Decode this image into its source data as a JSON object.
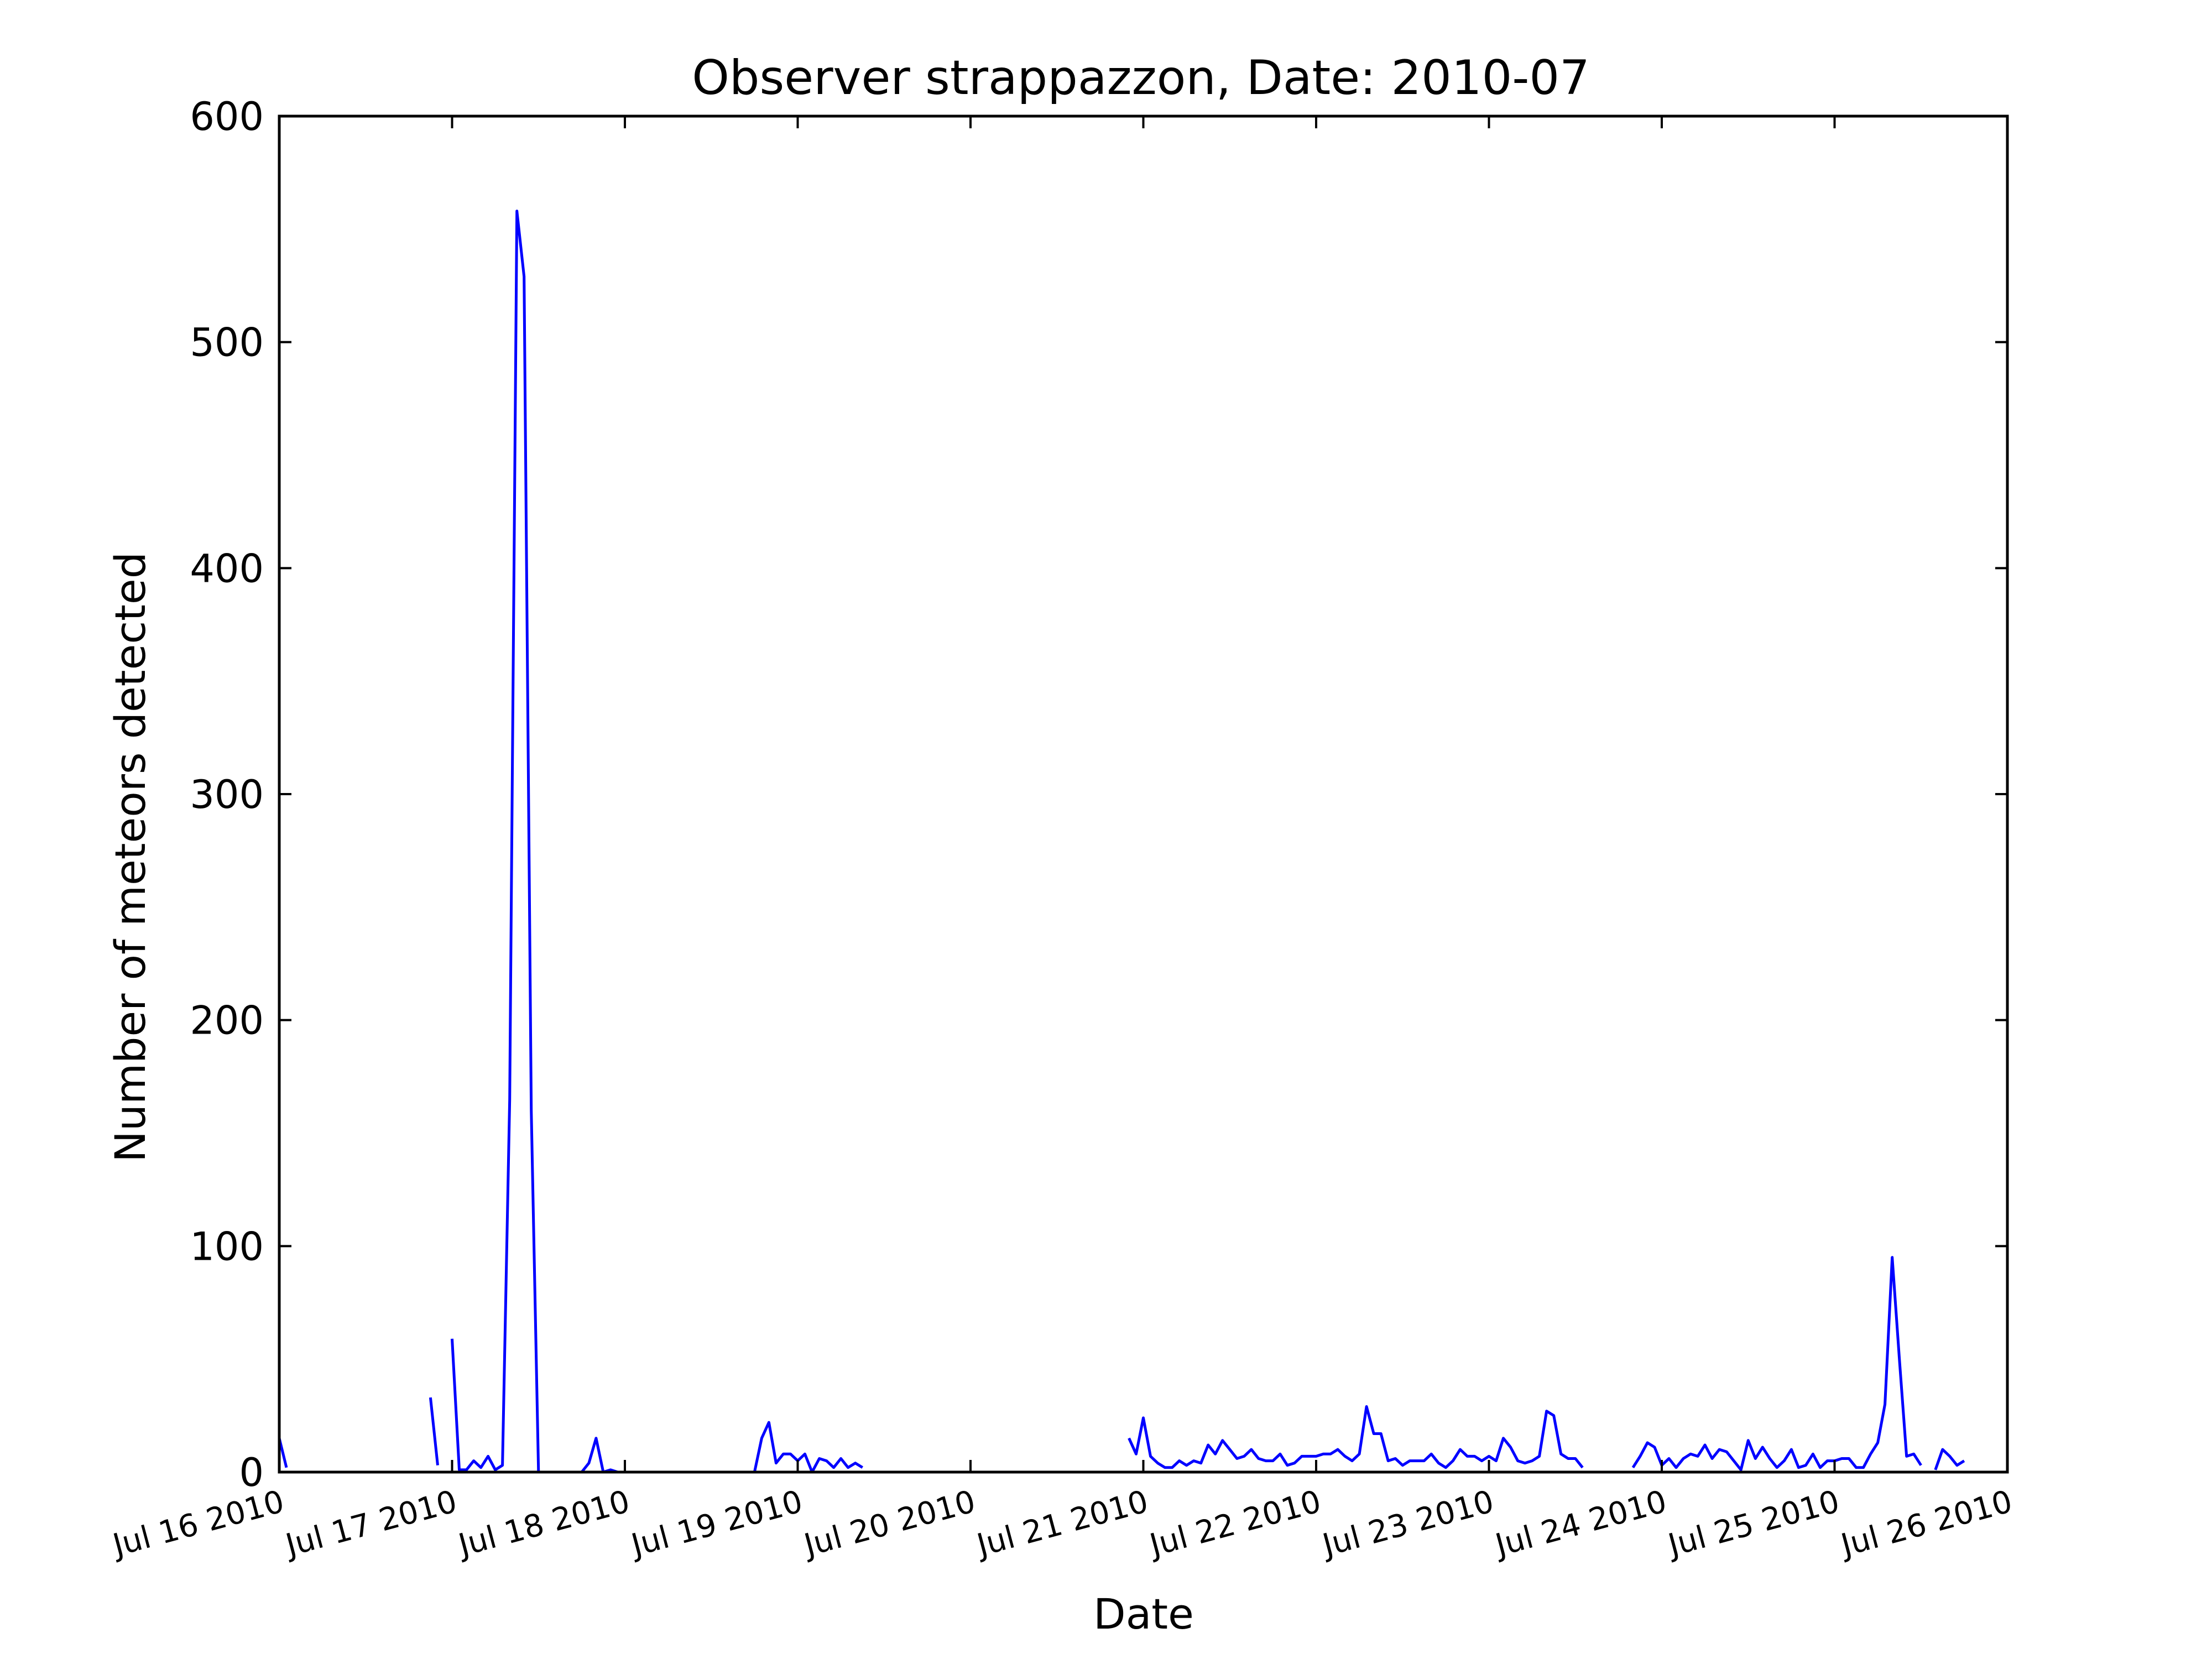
{
  "chart_data": {
    "type": "line",
    "title": "Observer strappazzon, Date: 2010-07",
    "xlabel": "Date",
    "ylabel": "Number of meteors detected",
    "ylim": [
      0,
      600
    ],
    "yticks": [
      0,
      100,
      200,
      300,
      400,
      500,
      600
    ],
    "xlim": [
      "2010-07-16 00:00",
      "2010-07-26 00:00"
    ],
    "xtick_labels": [
      "Jul 16 2010",
      "Jul 17 2010",
      "Jul 18 2010",
      "Jul 19 2010",
      "Jul 20 2010",
      "Jul 21 2010",
      "Jul 22 2010",
      "Jul 23 2010",
      "Jul 24 2010",
      "Jul 25 2010",
      "Jul 26 2010"
    ],
    "grid": false,
    "line_color": "#0000ff",
    "series": [
      {
        "segments": [
          [
            [
              "2010-07-16 00:00",
              15
            ],
            [
              "2010-07-16 01:00",
              2
            ]
          ],
          [
            [
              "2010-07-16 21:00",
              33
            ],
            [
              "2010-07-16 22:00",
              3
            ]
          ],
          [
            [
              "2010-07-17 00:00",
              59
            ],
            [
              "2010-07-17 01:00",
              1
            ],
            [
              "2010-07-17 02:00",
              1
            ],
            [
              "2010-07-17 03:00",
              5
            ],
            [
              "2010-07-17 04:00",
              2
            ],
            [
              "2010-07-17 05:00",
              7
            ],
            [
              "2010-07-17 06:00",
              1
            ],
            [
              "2010-07-17 07:00",
              3
            ],
            [
              "2010-07-17 08:00",
              165
            ],
            [
              "2010-07-17 09:00",
              558
            ],
            [
              "2010-07-17 10:00",
              529
            ],
            [
              "2010-07-17 11:00",
              160
            ],
            [
              "2010-07-17 12:00",
              0
            ]
          ],
          [
            [
              "2010-07-17 17:00",
              0
            ],
            [
              "2010-07-17 18:00",
              0
            ],
            [
              "2010-07-17 19:00",
              4
            ],
            [
              "2010-07-17 20:00",
              15
            ],
            [
              "2010-07-17 21:00",
              0
            ],
            [
              "2010-07-17 22:00",
              1
            ],
            [
              "2010-07-17 23:00",
              0
            ]
          ],
          [
            [
              "2010-07-18 17:00",
              0
            ],
            [
              "2010-07-18 18:00",
              0
            ],
            [
              "2010-07-18 19:00",
              15
            ],
            [
              "2010-07-18 20:00",
              22
            ],
            [
              "2010-07-18 21:00",
              4
            ],
            [
              "2010-07-18 22:00",
              8
            ],
            [
              "2010-07-18 23:00",
              8
            ],
            [
              "2010-07-19 00:00",
              5
            ],
            [
              "2010-07-19 01:00",
              8
            ],
            [
              "2010-07-19 02:00",
              0
            ],
            [
              "2010-07-19 03:00",
              6
            ],
            [
              "2010-07-19 04:00",
              5
            ],
            [
              "2010-07-19 05:00",
              2
            ],
            [
              "2010-07-19 06:00",
              6
            ],
            [
              "2010-07-19 07:00",
              2
            ],
            [
              "2010-07-19 08:00",
              4
            ],
            [
              "2010-07-19 09:00",
              2
            ]
          ],
          [
            [
              "2010-07-20 22:00",
              15
            ],
            [
              "2010-07-20 23:00",
              8
            ],
            [
              "2010-07-21 00:00",
              24
            ],
            [
              "2010-07-21 01:00",
              7
            ],
            [
              "2010-07-21 02:00",
              4
            ],
            [
              "2010-07-21 03:00",
              2
            ],
            [
              "2010-07-21 04:00",
              2
            ],
            [
              "2010-07-21 05:00",
              5
            ],
            [
              "2010-07-21 06:00",
              3
            ],
            [
              "2010-07-21 07:00",
              5
            ],
            [
              "2010-07-21 08:00",
              4
            ],
            [
              "2010-07-21 09:00",
              12
            ],
            [
              "2010-07-21 10:00",
              8
            ],
            [
              "2010-07-21 11:00",
              14
            ],
            [
              "2010-07-21 12:00",
              10
            ],
            [
              "2010-07-21 13:00",
              6
            ],
            [
              "2010-07-21 14:00",
              7
            ],
            [
              "2010-07-21 15:00",
              10
            ],
            [
              "2010-07-21 16:00",
              6
            ],
            [
              "2010-07-21 17:00",
              5
            ],
            [
              "2010-07-21 18:00",
              5
            ],
            [
              "2010-07-21 19:00",
              8
            ],
            [
              "2010-07-21 20:00",
              3
            ],
            [
              "2010-07-21 21:00",
              4
            ],
            [
              "2010-07-21 22:00",
              7
            ],
            [
              "2010-07-21 23:00",
              7
            ],
            [
              "2010-07-22 00:00",
              7
            ],
            [
              "2010-07-22 01:00",
              8
            ],
            [
              "2010-07-22 02:00",
              8
            ],
            [
              "2010-07-22 03:00",
              10
            ],
            [
              "2010-07-22 04:00",
              7
            ],
            [
              "2010-07-22 05:00",
              5
            ],
            [
              "2010-07-22 06:00",
              8
            ],
            [
              "2010-07-22 07:00",
              29
            ],
            [
              "2010-07-22 08:00",
              17
            ],
            [
              "2010-07-22 09:00",
              17
            ],
            [
              "2010-07-22 10:00",
              5
            ],
            [
              "2010-07-22 11:00",
              6
            ],
            [
              "2010-07-22 12:00",
              3
            ],
            [
              "2010-07-22 13:00",
              5
            ],
            [
              "2010-07-22 14:00",
              5
            ],
            [
              "2010-07-22 15:00",
              5
            ],
            [
              "2010-07-22 16:00",
              8
            ],
            [
              "2010-07-22 17:00",
              4
            ],
            [
              "2010-07-22 18:00",
              2
            ],
            [
              "2010-07-22 19:00",
              5
            ],
            [
              "2010-07-22 20:00",
              10
            ],
            [
              "2010-07-22 21:00",
              7
            ],
            [
              "2010-07-22 22:00",
              7
            ],
            [
              "2010-07-22 23:00",
              5
            ],
            [
              "2010-07-23 00:00",
              7
            ],
            [
              "2010-07-23 01:00",
              5
            ],
            [
              "2010-07-23 02:00",
              15
            ],
            [
              "2010-07-23 03:00",
              11
            ],
            [
              "2010-07-23 04:00",
              5
            ],
            [
              "2010-07-23 05:00",
              4
            ],
            [
              "2010-07-23 06:00",
              5
            ],
            [
              "2010-07-23 07:00",
              7
            ],
            [
              "2010-07-23 08:00",
              27
            ],
            [
              "2010-07-23 09:00",
              25
            ],
            [
              "2010-07-23 10:00",
              8
            ],
            [
              "2010-07-23 11:00",
              6
            ],
            [
              "2010-07-23 12:00",
              6
            ],
            [
              "2010-07-23 13:00",
              2
            ]
          ],
          [
            [
              "2010-07-23 20:00",
              2
            ],
            [
              "2010-07-23 21:00",
              7
            ],
            [
              "2010-07-23 22:00",
              13
            ],
            [
              "2010-07-23 23:00",
              11
            ],
            [
              "2010-07-24 00:00",
              3
            ],
            [
              "2010-07-24 01:00",
              6
            ],
            [
              "2010-07-24 02:00",
              2
            ],
            [
              "2010-07-24 03:00",
              6
            ],
            [
              "2010-07-24 04:00",
              8
            ],
            [
              "2010-07-24 05:00",
              7
            ],
            [
              "2010-07-24 06:00",
              12
            ],
            [
              "2010-07-24 07:00",
              6
            ],
            [
              "2010-07-24 08:00",
              10
            ],
            [
              "2010-07-24 09:00",
              9
            ],
            [
              "2010-07-24 10:00",
              5
            ],
            [
              "2010-07-24 11:00",
              1
            ],
            [
              "2010-07-24 12:00",
              14
            ],
            [
              "2010-07-24 13:00",
              6
            ],
            [
              "2010-07-24 14:00",
              11
            ],
            [
              "2010-07-24 15:00",
              6
            ],
            [
              "2010-07-24 16:00",
              2
            ],
            [
              "2010-07-24 17:00",
              5
            ],
            [
              "2010-07-24 18:00",
              10
            ],
            [
              "2010-07-24 19:00",
              2
            ],
            [
              "2010-07-24 20:00",
              3
            ],
            [
              "2010-07-24 21:00",
              8
            ],
            [
              "2010-07-24 22:00",
              2
            ],
            [
              "2010-07-24 23:00",
              5
            ],
            [
              "2010-07-25 00:00",
              5
            ],
            [
              "2010-07-25 01:00",
              6
            ],
            [
              "2010-07-25 02:00",
              6
            ],
            [
              "2010-07-25 03:00",
              2
            ],
            [
              "2010-07-25 04:00",
              2
            ],
            [
              "2010-07-25 05:00",
              8
            ],
            [
              "2010-07-25 06:00",
              13
            ],
            [
              "2010-07-25 07:00",
              30
            ],
            [
              "2010-07-25 08:00",
              95
            ],
            [
              "2010-07-25 09:00",
              50
            ],
            [
              "2010-07-25 10:00",
              7
            ],
            [
              "2010-07-25 11:00",
              8
            ],
            [
              "2010-07-25 12:00",
              3
            ]
          ],
          [
            [
              "2010-07-25 14:00",
              1
            ],
            [
              "2010-07-25 15:00",
              10
            ],
            [
              "2010-07-25 16:00",
              7
            ],
            [
              "2010-07-25 17:00",
              3
            ],
            [
              "2010-07-25 18:00",
              5
            ]
          ]
        ]
      }
    ]
  }
}
